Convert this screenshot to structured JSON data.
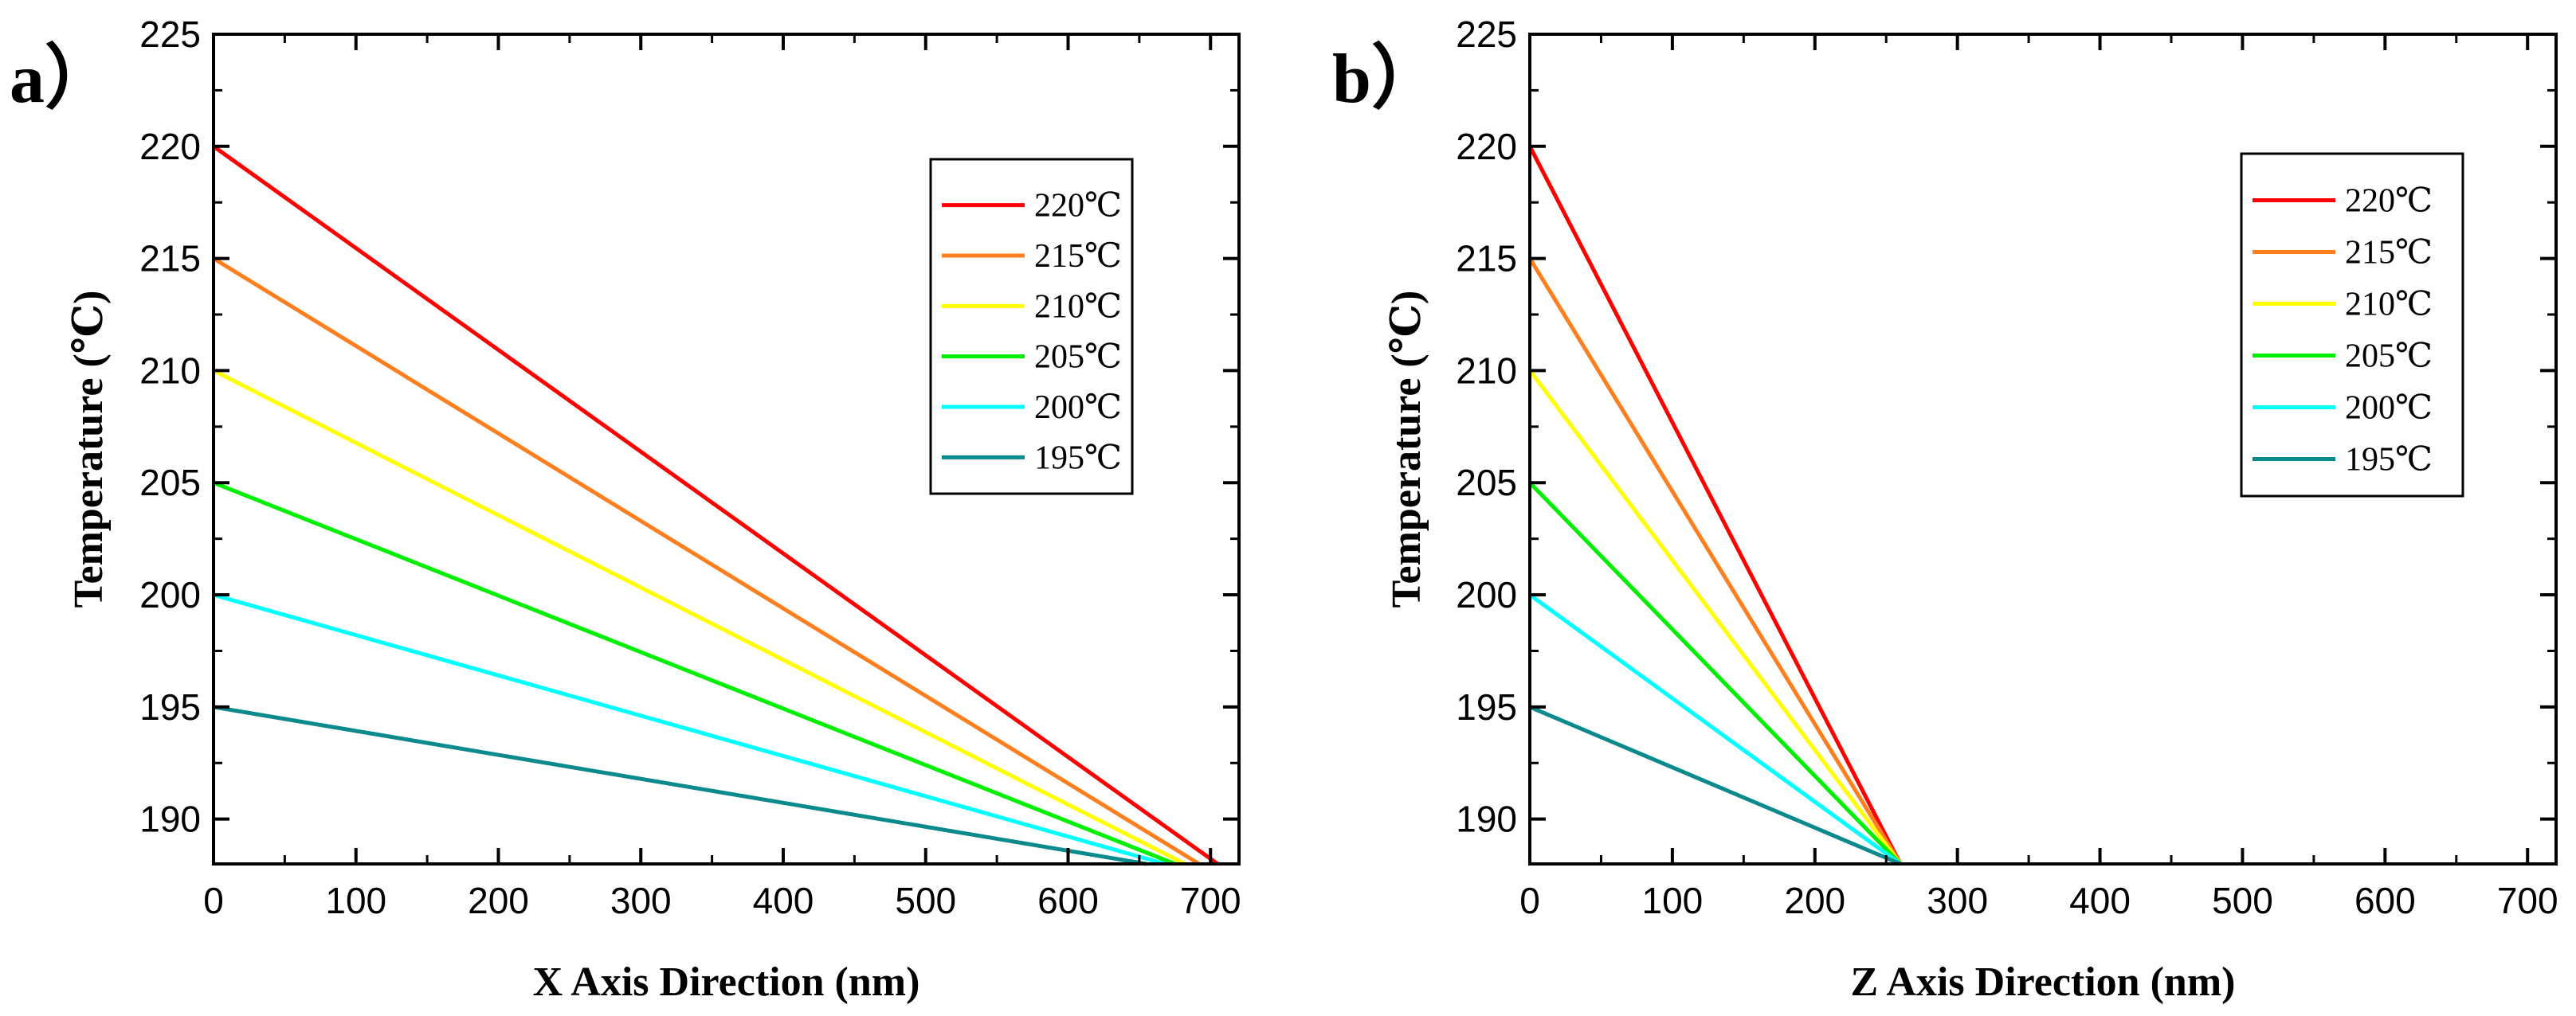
{
  "chart_data": [
    {
      "type": "line",
      "panel_label": "a）",
      "xlabel": "X Axis Direction (nm)",
      "ylabel": "Temperature (℃)",
      "xlim": [
        0,
        720
      ],
      "ylim": [
        188,
        225
      ],
      "xticks": [
        0,
        100,
        200,
        300,
        400,
        500,
        600,
        700
      ],
      "yticks": [
        190,
        195,
        200,
        205,
        210,
        215,
        220,
        225
      ],
      "legend_position": "top-right",
      "series": [
        {
          "name": "220℃",
          "color": "#ff0000",
          "x": [
            0,
            705
          ],
          "y": [
            220,
            188
          ]
        },
        {
          "name": "215℃",
          "color": "#ff7f1e",
          "x": [
            0,
            692
          ],
          "y": [
            215,
            188
          ]
        },
        {
          "name": "210℃",
          "color": "#ffff00",
          "x": [
            0,
            682
          ],
          "y": [
            210,
            188
          ]
        },
        {
          "name": "205℃",
          "color": "#00ee00",
          "x": [
            0,
            675
          ],
          "y": [
            205,
            188
          ]
        },
        {
          "name": "200℃",
          "color": "#00ffff",
          "x": [
            0,
            668
          ],
          "y": [
            200,
            188
          ]
        },
        {
          "name": "195℃",
          "color": "#0b8a8e",
          "x": [
            0,
            655
          ],
          "y": [
            195,
            188
          ]
        }
      ]
    },
    {
      "type": "line",
      "panel_label": "b）",
      "xlabel": "Z Axis Direction (nm)",
      "ylabel": "Temperature (℃)",
      "xlim": [
        0,
        720
      ],
      "ylim": [
        188,
        225
      ],
      "xticks": [
        0,
        100,
        200,
        300,
        400,
        500,
        600,
        700
      ],
      "yticks": [
        190,
        195,
        200,
        205,
        210,
        215,
        220,
        225
      ],
      "legend_position": "top-right",
      "series": [
        {
          "name": "220℃",
          "color": "#ff0000",
          "x": [
            0,
            260
          ],
          "y": [
            220,
            188
          ]
        },
        {
          "name": "215℃",
          "color": "#ff7f1e",
          "x": [
            0,
            260
          ],
          "y": [
            215,
            188
          ]
        },
        {
          "name": "210℃",
          "color": "#ffff00",
          "x": [
            0,
            260
          ],
          "y": [
            210,
            188
          ]
        },
        {
          "name": "205℃",
          "color": "#00ee00",
          "x": [
            0,
            260
          ],
          "y": [
            205,
            188
          ]
        },
        {
          "name": "200℃",
          "color": "#00ffff",
          "x": [
            0,
            260
          ],
          "y": [
            200,
            188
          ]
        },
        {
          "name": "195℃",
          "color": "#0b8a8e",
          "x": [
            0,
            260
          ],
          "y": [
            195,
            188
          ]
        }
      ]
    }
  ]
}
